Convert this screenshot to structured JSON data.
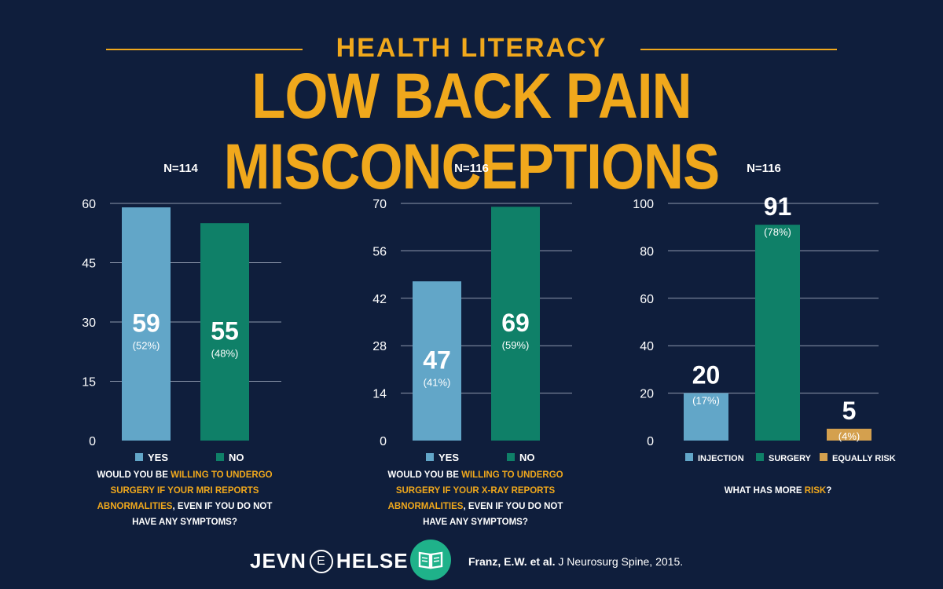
{
  "header": {
    "supertitle": "HEALTH LITERACY",
    "title": "LOW BACK PAIN MISCONCEPTIONS"
  },
  "colors": {
    "background": "#0f1e3c",
    "accent": "#f0a81c",
    "yes": "#62a6c8",
    "no": "#0f8068",
    "equally_risky": "#d4a04e"
  },
  "chart_data": [
    {
      "type": "bar",
      "title": "N=114",
      "categories": [
        "YES",
        "NO"
      ],
      "values": [
        59,
        55
      ],
      "value_labels": [
        "59",
        "55"
      ],
      "percent_labels": [
        "(52%)",
        "(48%)"
      ],
      "colors": [
        "#62a6c8",
        "#0f8068"
      ],
      "ylim": [
        0,
        60
      ],
      "yticks": [
        0,
        15,
        30,
        45,
        60
      ],
      "grid": true,
      "legend_position": "bottom",
      "question": {
        "pre": "WOULD YOU BE ",
        "highlight": "WILLING TO UNDERGO SURGERY IF YOUR MRI REPORTS ABNORMALITIES",
        "post": ", EVEN IF YOU DO NOT HAVE ANY SYMPTOMS?"
      }
    },
    {
      "type": "bar",
      "title": "N=116",
      "categories": [
        "YES",
        "NO"
      ],
      "values": [
        47,
        69
      ],
      "value_labels": [
        "47",
        "69"
      ],
      "percent_labels": [
        "(41%)",
        "(59%)"
      ],
      "colors": [
        "#62a6c8",
        "#0f8068"
      ],
      "ylim": [
        0,
        70
      ],
      "yticks": [
        0,
        14,
        28,
        42,
        56,
        70
      ],
      "grid": true,
      "legend_position": "bottom",
      "question": {
        "pre": "WOULD YOU BE ",
        "highlight": "WILLING TO UNDERGO SURGERY IF YOUR X-RAY REPORTS ABNORMALITIES",
        "post": ", EVEN IF YOU DO NOT HAVE ANY SYMPTOMS?"
      }
    },
    {
      "type": "bar",
      "title": "N=116",
      "categories": [
        "INJECTION",
        "SURGERY",
        "EQUALLY RISKY"
      ],
      "values": [
        20,
        91,
        5
      ],
      "value_labels": [
        "20",
        "91",
        "5"
      ],
      "percent_labels": [
        "(17%)",
        "(78%)",
        "(4%)"
      ],
      "colors": [
        "#62a6c8",
        "#0f8068",
        "#d4a04e"
      ],
      "ylim": [
        0,
        100
      ],
      "yticks": [
        0,
        20,
        40,
        60,
        80,
        100
      ],
      "grid": true,
      "legend_position": "bottom",
      "question": {
        "pre": "WHAT HAS MORE ",
        "highlight": "RISK",
        "post": "?"
      }
    }
  ],
  "footer": {
    "brand_left": "JEVN",
    "brand_mid": "E",
    "brand_right": "HELSE",
    "book_icon": "open-book-icon",
    "citation_bold": "Franz, E.W. et al.",
    "citation_rest": " J Neurosurg Spine, 2015."
  }
}
